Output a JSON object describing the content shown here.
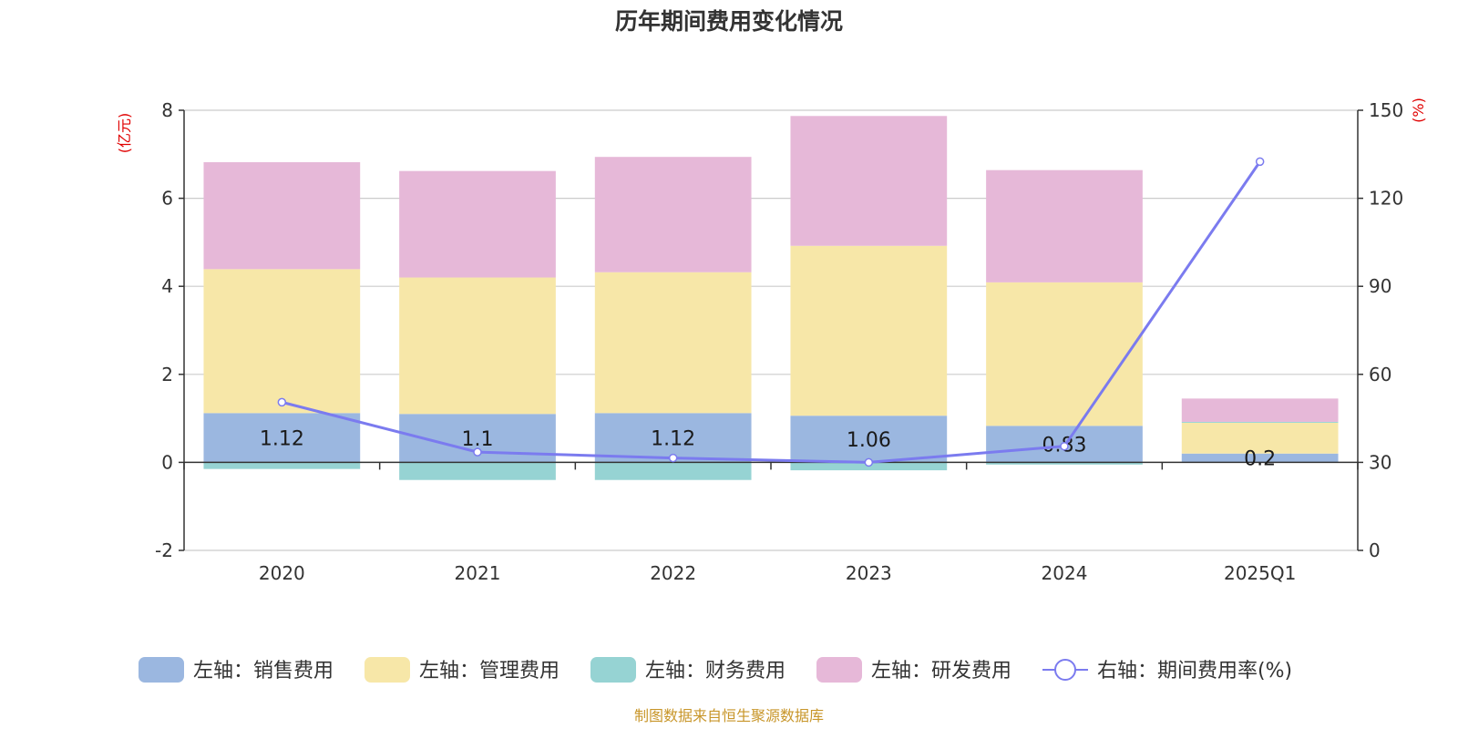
{
  "title": "历年期间费用变化情况",
  "source": "制图数据来自恒生聚源数据库",
  "chart_data": {
    "type": "bar",
    "stacked": true,
    "categories": [
      "2020",
      "2021",
      "2022",
      "2023",
      "2024",
      "2025Q1"
    ],
    "left_axis": {
      "unit_label": "(亿元)",
      "ylim": [
        -2,
        8
      ],
      "ticks": [
        "-2",
        "0",
        "2",
        "4",
        "6",
        "8"
      ]
    },
    "right_axis": {
      "unit_label": "(%)",
      "ylim": [
        0,
        150
      ],
      "ticks": [
        "0",
        "30",
        "60",
        "90",
        "120",
        "150"
      ]
    },
    "grid": true,
    "legend_position": "bottom",
    "series": [
      {
        "name": "左轴：销售费用",
        "axis": "left",
        "type": "bar",
        "color": "#9bb7e0",
        "values": [
          1.12,
          1.1,
          1.12,
          1.06,
          0.83,
          0.2
        ],
        "labels": [
          "1.12",
          "1.1",
          "1.12",
          "1.06",
          "0.83",
          "0.2"
        ]
      },
      {
        "name": "左轴：管理费用",
        "axis": "left",
        "type": "bar",
        "color": "#f7e7a8",
        "values": [
          3.27,
          3.1,
          3.2,
          3.86,
          3.26,
          0.7
        ]
      },
      {
        "name": "左轴：财务费用",
        "axis": "left",
        "type": "bar",
        "color": "#96d3d3",
        "values": [
          -0.15,
          -0.4,
          -0.4,
          -0.18,
          -0.05,
          0.02
        ]
      },
      {
        "name": "左轴：研发费用",
        "axis": "left",
        "type": "bar",
        "color": "#e6b8d8",
        "values": [
          2.43,
          2.42,
          2.62,
          2.95,
          2.55,
          0.53
        ]
      },
      {
        "name": "右轴：期间费用率(%)",
        "axis": "right",
        "type": "line",
        "color": "#7b7bef",
        "values": [
          50.5,
          33.5,
          31.5,
          30.0,
          35.5,
          132.5
        ]
      }
    ]
  }
}
